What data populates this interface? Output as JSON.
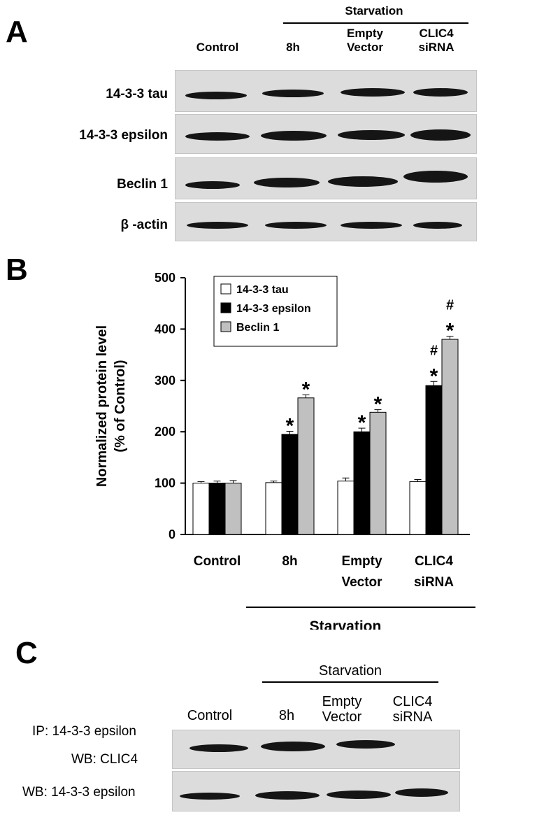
{
  "panel_a": {
    "label": "A",
    "starvation_label": "Starvation",
    "columns": [
      "Control",
      "8h",
      "Empty\nVector",
      "CLIC4\nsiRNA"
    ],
    "rows": [
      "14-3-3 tau",
      "14-3-3 epsilon",
      "Beclin 1",
      "β -actin"
    ]
  },
  "panel_b": {
    "label": "B"
  },
  "panel_c": {
    "label": "C",
    "starvation_label": "Starvation",
    "columns": [
      "Control",
      "8h",
      "Empty\nVector",
      "CLIC4\nsiRNA"
    ],
    "row1_line1": "IP: 14-3-3 epsilon",
    "row1_line2": "WB: CLIC4",
    "row2": "WB: 14-3-3 epsilon"
  },
  "chart_data": {
    "type": "bar",
    "categories": [
      "Control",
      "8h",
      "Empty\nVector",
      "CLIC4\nsiRNA"
    ],
    "series": [
      {
        "name": "14-3-3 tau",
        "values": [
          100,
          101,
          104,
          103
        ],
        "errors": [
          3,
          3,
          6,
          4
        ],
        "color": "#ffffff"
      },
      {
        "name": "14-3-3 epsilon",
        "values": [
          100,
          195,
          200,
          290
        ],
        "errors": [
          4,
          6,
          7,
          8
        ],
        "color": "#000000"
      },
      {
        "name": "Beclin 1",
        "values": [
          100,
          266,
          238,
          380
        ],
        "errors": [
          5,
          6,
          5,
          6
        ],
        "color": "#c0c0c0"
      }
    ],
    "annotations": [
      [
        "",
        "",
        ""
      ],
      [
        "",
        "*",
        "*"
      ],
      [
        "",
        "*",
        "*"
      ],
      [
        "",
        "#\n*",
        "#\n*"
      ]
    ],
    "ylabel": "Normalized protein level\n(% of Control)",
    "ylim": [
      0,
      500
    ],
    "yticks": [
      0,
      100,
      200,
      300,
      400,
      500
    ],
    "group_label": "Starvation",
    "legend_position": "top-left",
    "grid": false
  }
}
